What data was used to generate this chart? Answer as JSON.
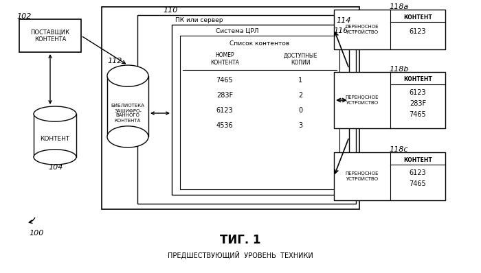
{
  "bg_color": "#ffffff",
  "title": "ΤИГ. 1",
  "subtitle": "ПРЕДШЕСТВУЮЩИЙ  УРОВЕНЬ  ТЕХНИКИ",
  "label_100": "100",
  "label_102": "102",
  "label_104": "104",
  "label_110": "110",
  "label_112": "112",
  "label_114": "114",
  "label_116": "116",
  "label_118a": "118a",
  "label_118b": "118b",
  "label_118c": "118c",
  "box102_text": "ПОСТАВЩИК\nКОНТЕНТА",
  "cylinder104_text": "КОНТЕНТ",
  "cylinder112_text": "БИБЛИОТЕКА\nЗАШИФРО-\nВАННОГО\nКОНТЕНТА",
  "pc_label": "ПК или сервер",
  "drm_label": "Система ЦРЛ",
  "list_title": "Список контентов",
  "col1_header": "НОМЕР\nКОНТЕНТА",
  "col2_header": "ДОСТУПНЫЕ\nКОПИИ",
  "table_data": [
    [
      "7465",
      "1"
    ],
    [
      "283F",
      "2"
    ],
    [
      "6123",
      "0"
    ],
    [
      "4536",
      "3"
    ]
  ],
  "device_label": "ПЕРЕНОСНОЕ\nУСТРОЙСТВО",
  "content_label": "КОНТЕНТ",
  "device_a_content": [
    "6123"
  ],
  "device_b_content": [
    "6123",
    "283F",
    "7465"
  ],
  "device_c_content": [
    "6123",
    "7465"
  ]
}
